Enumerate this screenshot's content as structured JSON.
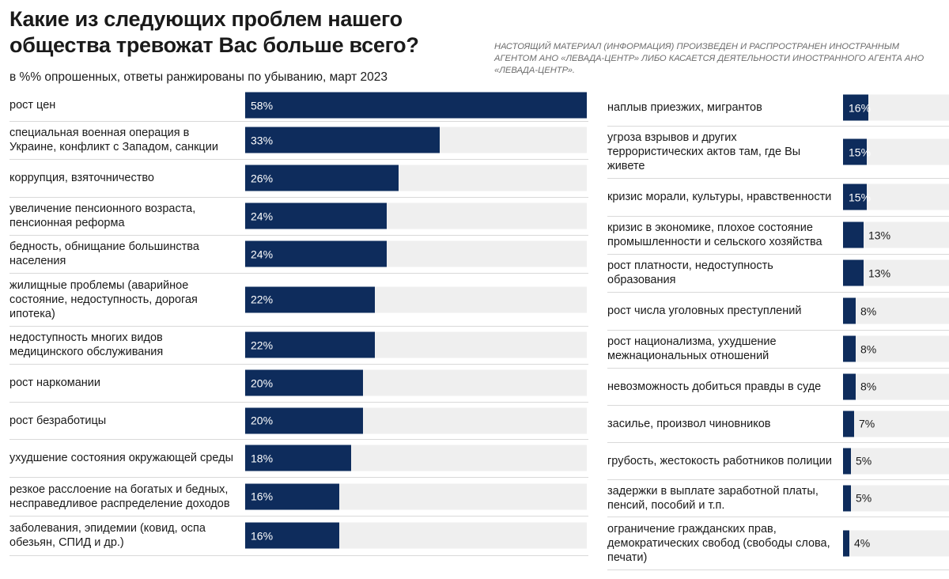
{
  "header": {
    "title": "Какие из следующих проблем нашего общества тревожат Вас больше всего?",
    "subtitle": "в %% опрошенных, ответы ранжированы по убыванию, март 2023",
    "disclaimer": "НАСТОЯЩИЙ МАТЕРИАЛ (ИНФОРМАЦИЯ) ПРОИЗВЕДЕН И РАСПРОСТРАНЕН ИНОСТРАННЫМ АГЕНТОМ АНО «ЛЕВАДА-ЦЕНТР» ЛИБО КАСАЕТСЯ ДЕЯТЕЛЬНОСТИ ИНОСТРАННОГО АГЕНТА АНО «ЛЕВАДА-ЦЕНТР»."
  },
  "colors": {
    "bar": "#0e2c5c",
    "track": "#efefef"
  },
  "chart_data": {
    "type": "bar",
    "orientation": "horizontal",
    "title": "Какие из следующих проблем нашего общества тревожат Вас больше всего?",
    "subtitle": "в %% опрошенных, ответы ранжированы по убыванию, март 2023",
    "xlim": [
      0,
      58
    ],
    "grid": false,
    "legend": "none",
    "unit": "%",
    "columns": [
      [
        {
          "label": "рост цен",
          "value": 58
        },
        {
          "label": "специальная военная операция в Украине, конфликт с Западом, санкции",
          "value": 33
        },
        {
          "label": "коррупция, взяточничество",
          "value": 26
        },
        {
          "label": "увеличение пенсионного возраста, пенсионная реформа",
          "value": 24
        },
        {
          "label": "бедность, обнищание большинства населения",
          "value": 24
        },
        {
          "label": "жилищные проблемы (аварийное состояние, недоступность, дорогая ипотека)",
          "value": 22
        },
        {
          "label": "недоступность многих видов медицинского обслуживания",
          "value": 22
        },
        {
          "label": "рост наркомании",
          "value": 20
        },
        {
          "label": "рост безработицы",
          "value": 20
        },
        {
          "label": "ухудшение состояния окружающей среды",
          "value": 18
        },
        {
          "label": "резкое расслоение на богатых и бедных, несправедливое распределение доходов",
          "value": 16
        },
        {
          "label": "заболевания, эпидемии (ковид, оспа обезьян, СПИД и др.)",
          "value": 16
        }
      ],
      [
        {
          "label": "наплыв приезжих, мигрантов",
          "value": 16
        },
        {
          "label": "угроза взрывов и других террористических актов там, где Вы живете",
          "value": 15
        },
        {
          "label": "кризис морали, культуры, нравственности",
          "value": 15
        },
        {
          "label": "кризис в экономике, плохое состояние промышленности и сельского хозяйства",
          "value": 13
        },
        {
          "label": "рост платности, недоступность образования",
          "value": 13
        },
        {
          "label": "рост числа уголовных преступлений",
          "value": 8
        },
        {
          "label": "рост национализма, ухудшение межнациональных отношений",
          "value": 8
        },
        {
          "label": "невозможность добиться правды в суде",
          "value": 8
        },
        {
          "label": "засилье, произвол чиновников",
          "value": 7
        },
        {
          "label": "грубость, жестокость работников полиции",
          "value": 5
        },
        {
          "label": "задержки в выплате заработной платы, пенсий, пособий и т.п.",
          "value": 5
        },
        {
          "label": "ограничение гражданских прав, демократических свобод (свободы слова, печати)",
          "value": 4
        }
      ]
    ]
  }
}
